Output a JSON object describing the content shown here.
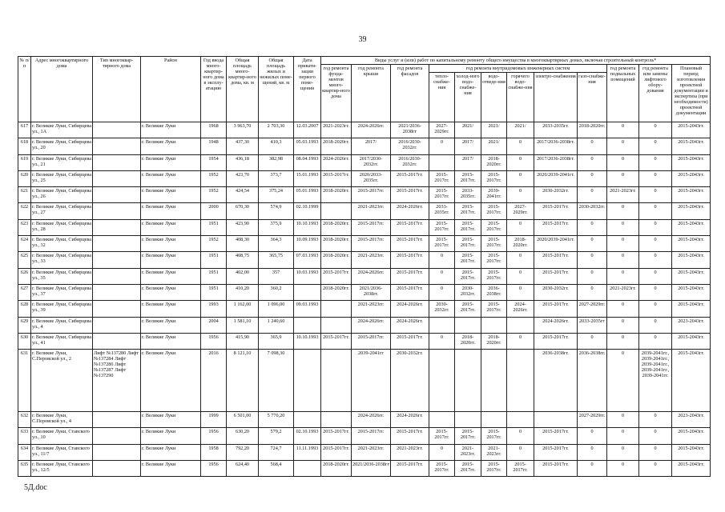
{
  "page_number": "39",
  "footer": "5Д.doc",
  "header": {
    "num": "№ п/п",
    "address": "Адрес многоквартирного дома",
    "type": "Тип многоквар-тирного дома",
    "district": "Район",
    "year": "Год ввода много-квартир-ного дома в эксплу-атацию",
    "area_total": "Общая площадь много-квартир-ного дома, кв. м",
    "area_living": "Общая площадь жилых и нежилых поме-щений, кв. м",
    "privatization": "Дата привати-зации первого поме-щения",
    "works_group": "Виды услуг и (или) работ по капитальному ремонту общего имущества в многоквартирных домах, включая строительный контроль*",
    "foundation": "год ремонта фунда-ментов много-квартир-ного дома",
    "roof": "год ремонта крыши",
    "facade": "год ремонта фасадов",
    "engineering_group": "год ремонта внутридомовых инженерных систем",
    "heat": "тепло-снабже-ния",
    "cold_water": "холод-ного водо-снабже-ния",
    "sewerage": "водо-отведе-ния",
    "hot_water": "горячего водо-снабже-ния",
    "electricity": "электро-снабжения",
    "gas": "газо-снабже-ния",
    "basement": "год ремонта подвальных помещений",
    "elevator": "год ремонта или замены лифтового обору-дования",
    "design": "Плановый период изготовления проектной документации и экспертиза (при необходимости) проектной документации"
  },
  "rows": [
    [
      "617",
      "г. Великие Луки, Сибирцева ул., 1А",
      "",
      "г. Великие Луки",
      "1968",
      "3 963,70",
      "2 703,30",
      "12.03.2007",
      "2021-2023гг.",
      "2024-2026гг.",
      "2021/2036-2038гг",
      "2027-2029гг.",
      "2021/",
      "2021/",
      "2021/",
      "2033-2035гг.",
      "2018-2020гг.",
      "0",
      "0",
      "2015-2043гг."
    ],
    [
      "618",
      "г. Великие Луки, Сибирцева ул., 20",
      "",
      "г. Великие Луки",
      "1948",
      "437,30",
      "410,3",
      "05.03.1993",
      "2018-2020гг.",
      "2017/",
      "2016/2030-2032гг.",
      "0",
      "2017/",
      "2021/",
      "0",
      "2017/2036-2038гг.",
      "0",
      "0",
      "0",
      "2015-2043гг."
    ],
    [
      "619",
      "г. Великие Луки, Сибирцева ул., 21",
      "",
      "г. Великие Луки",
      "1954",
      "436,18",
      "382,98",
      "08.04.1993",
      "2024-2026гг.",
      "2017/2030-2032гг.",
      "2016/2030-2032гг.",
      "",
      "2017/",
      "2018-2020гг.",
      "0",
      "2017/2036-2038гг.",
      "0",
      "0",
      "0",
      "2015-2043гг."
    ],
    [
      "620",
      "г. Великие Луки, Сибирцева ул., 25",
      "",
      "г. Великие Луки",
      "1952",
      "423,70",
      "373,7",
      "15.01.1993",
      "2015-2017гг.",
      "2020/2033-2035гг.",
      "2015-2017гг.",
      "2015-2017гг.",
      "2015-2017гг.",
      "2015-2017гг.",
      "0",
      "2020/2039-2041гг.",
      "0",
      "0",
      "0",
      "2015-2043гг."
    ],
    [
      "621",
      "г. Великие Луки, Сибирцева ул., 26",
      "",
      "г. Великие Луки",
      "1952",
      "424,54",
      "375,24",
      "05.01.1993",
      "2018-2020гг.",
      "2015-2017гг.",
      "2015-2017гг.",
      "2015-2017гг.",
      "2033-2035гг.",
      "2039-2041гг.",
      "0",
      "2030-2032гг.",
      "0",
      "2021-2023гг.",
      "0",
      "2015-2043гг."
    ],
    [
      "622",
      "г. Великие Луки, Сибирцева ул., 27",
      "",
      "г. Великие Луки",
      "2000",
      "670,30",
      "574,9",
      "02.10.1999",
      "",
      "2021-2023гг.",
      "2024-2026гг.",
      "2033-2035гг.",
      "2015-2017гг.",
      "2015-2017гг.",
      "2027-2029гг.",
      "2015-2017гг.",
      "2030-2032гг.",
      "0",
      "0",
      "2015-2043гг."
    ],
    [
      "623",
      "г. Великие Луки, Сибирцева ул., 28",
      "",
      "г. Великие Луки",
      "1951",
      "423,90",
      "375,9",
      "10.10.1993",
      "2018-2020гг.",
      "2015-2017гг.",
      "2015-2017гг.",
      "2015-2017гг.",
      "2015-2017гг.",
      "2015-2017гг.",
      "0",
      "2015-2017гг.",
      "0",
      "0",
      "0",
      "2015-2043гг."
    ],
    [
      "624",
      "г. Великие Луки, Сибирцева ул., 32",
      "",
      "г. Великие Луки",
      "1952",
      "408,30",
      "364,3",
      "10.09.1993",
      "2018-2020гг.",
      "2015-2017гг.",
      "2015-2017гг.",
      "2015-2017гг.",
      "2015-2017гг.",
      "2015-2017гг.",
      "2018-2020гг.",
      "2020/2039-2041гг.",
      "0",
      "0",
      "0",
      "2015-2043гг."
    ],
    [
      "625",
      "г. Великие Луки, Сибирцева ул., 33",
      "",
      "г. Великие Луки",
      "1951",
      "408,75",
      "365,75",
      "07.03.1993",
      "2018-2020гг.",
      "2021-2023гг.",
      "2015-2017гг.",
      "0",
      "2015-2017гг.",
      "2015-2017гг.",
      "0",
      "2015-2017гг.",
      "0",
      "0",
      "0",
      "2015-2043гг."
    ],
    [
      "626",
      "г. Великие Луки, Сибирцева ул., 35",
      "",
      "г. Великие Луки",
      "1951",
      "402,00",
      "357",
      "10.03.1993",
      "2015-2017гг.",
      "2024-2026гг.",
      "2015-2017гг.",
      "0",
      "2015-2017гг.",
      "2015-2017гг.",
      "0",
      "2015-2017гг.",
      "0",
      "0",
      "0",
      "2015-2043гг."
    ],
    [
      "627",
      "г. Великие Луки, Сибирцева ул., 37",
      "",
      "г. Великие Луки",
      "1951",
      "410,20",
      "360,2",
      "",
      "2018-2020гг.",
      "2021/2036-2038гг.",
      "2015-2017гг.",
      "0",
      "2030-2032гг.",
      "2036-2038гг.",
      "0",
      "2030-2032гг.",
      "0",
      "2021-2023гг.",
      "0",
      "2015-2043гг."
    ],
    [
      "628",
      "г. Великие Луки, Сибирцева ул., 39",
      "",
      "г. Великие Луки",
      "1993",
      "1 162,00",
      "1 096,00",
      "09.03.1993",
      "",
      "2021-2023гг.",
      "2024-2026гг.",
      "2030-2032гг.",
      "2015-2017гг.",
      "2015-2017гг.",
      "2024-2026гг.",
      "2015-2017гг.",
      "2027-2029гг.",
      "0",
      "0",
      "2015-2043гг."
    ],
    [
      "629",
      "г. Великие Луки, Сибирцева ул., 4",
      "",
      "г. Великие Луки",
      "2004",
      "1 581,10",
      "1 240,60",
      "",
      "",
      "2024-2026гг.",
      "2024-2026гг.",
      "",
      "",
      "",
      "",
      "2024-2026гг.",
      "2033-2035гг",
      "0",
      "0",
      "2023-2043гг."
    ],
    [
      "630",
      "г. Великие Луки, Сибирцева ул., 41",
      "",
      "г. Великие Луки",
      "1956",
      "415,90",
      "365,9",
      "10.10.1993",
      "2015-2017гг.",
      "2015-2017гг.",
      "2015-2017гг.",
      "0",
      "2018-2020гг.",
      "2018-2020гг.",
      "0",
      "2015-2017гг.",
      "0",
      "0",
      "0",
      "2015-2043гг."
    ],
    [
      "631",
      "г. Великие Луки, С.Перовской ул., 2",
      "Лифт №137280 Лифт №137284 Лифт №137286 Лифт №137287 Лифт №137290",
      "г. Великие Луки",
      "2016",
      "8 121,10",
      "7 098,30",
      "",
      "",
      "2039-2041гг",
      "2030-2032гг.",
      "",
      "",
      "",
      "",
      "2036-2038гг.",
      "2036-2038гг.",
      "0",
      "2039-2041гг., 2039-2041гг., 2039-2041гг., 2039-2041гг., 2039-2041гг.",
      "2015-2043гг."
    ],
    [
      "632",
      "г. Великие Луки, С.Перовской ул., 4",
      "",
      "г. Великие Луки",
      "1999",
      "6 501,00",
      "5 770,20",
      "",
      "",
      "2024-2026гг.",
      "2024-2026гг.",
      "",
      "",
      "",
      "",
      "",
      "2027-2029гг.",
      "0",
      "0",
      "2023-2043гг."
    ],
    [
      "633",
      "г. Великие Луки, Ставского ул., 10",
      "",
      "г. Великие Луки",
      "1956",
      "630,20",
      "579,2",
      "02.10.1993",
      "2015-2017гг.",
      "2015-2017гг.",
      "2015-2017гг.",
      "2015-2017гг.",
      "2015-2017гг.",
      "2015-2017гг.",
      "0",
      "2015-2017гг.",
      "0",
      "0",
      "0",
      "2015-2043гг."
    ],
    [
      "634",
      "г. Великие Луки, Ставского ул., 11/7",
      "",
      "г. Великие Луки",
      "1958",
      "792,20",
      "724,7",
      "11.11.1993",
      "2015-2017гг.",
      "2021-2023гг.",
      "2021-2023гг.",
      "0",
      "2021-2023гг.",
      "2021-2023гг.",
      "0",
      "2015-2017гг.",
      "0",
      "0",
      "0",
      "2015-2043гг."
    ],
    [
      "635",
      "г. Великие Луки, Ставского ул., 12/5",
      "",
      "г. Великие Луки",
      "1956",
      "624,40",
      "568,4",
      "",
      "2018-2020гг.",
      "2021/2036-2038гг",
      "2015-2017гг.",
      "2015-2017гг.",
      "2015-2017гг.",
      "2015-2017гг.",
      "2015-2017гг.",
      "2015-2017гг.",
      "0",
      "0",
      "0",
      "2015-2043гг."
    ]
  ]
}
